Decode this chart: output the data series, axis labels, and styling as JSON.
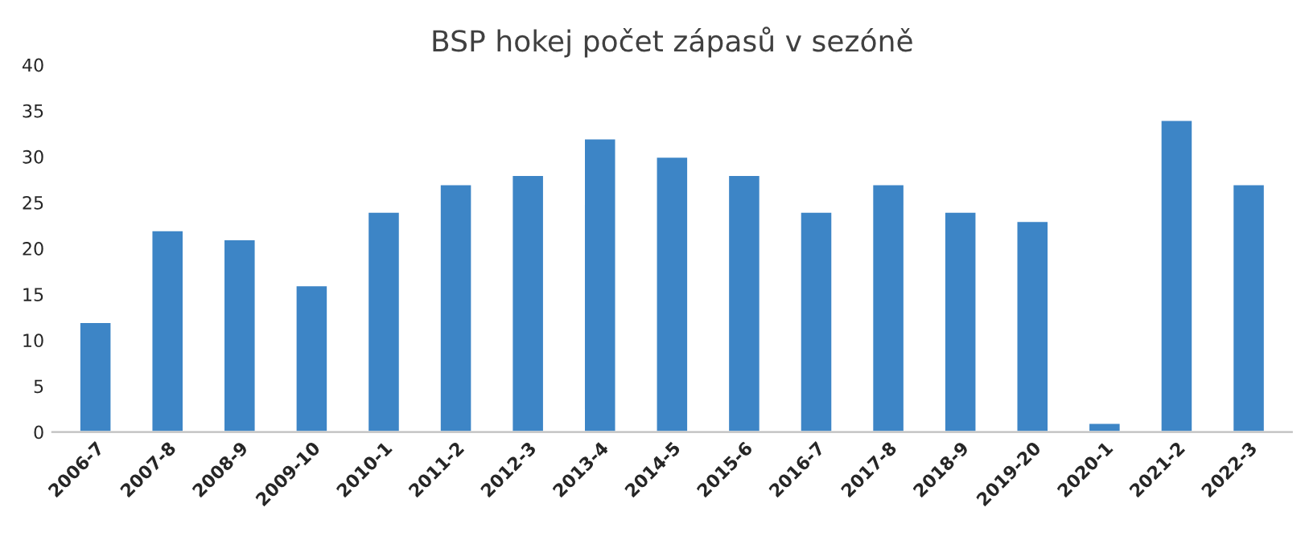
{
  "chart_data": {
    "type": "bar",
    "title": "BSP hokej počet zápasů v sezóně",
    "categories": [
      "2006-7",
      "2007-8",
      "2008-9",
      "2009-10",
      "2010-1",
      "2011-2",
      "2012-3",
      "2013-4",
      "2014-5",
      "2015-6",
      "2016-7",
      "2017-8",
      "2018-9",
      "2019-20",
      "2020-1",
      "2021-2",
      "2022-3"
    ],
    "values": [
      12,
      22,
      21,
      16,
      24,
      27,
      28,
      32,
      30,
      28,
      24,
      27,
      24,
      23,
      1,
      34,
      27
    ],
    "color": "#3d85c6",
    "ylim": [
      0,
      40
    ],
    "yticks": [
      0,
      5,
      10,
      15,
      20,
      25,
      30,
      35,
      40
    ],
    "grid": false
  }
}
